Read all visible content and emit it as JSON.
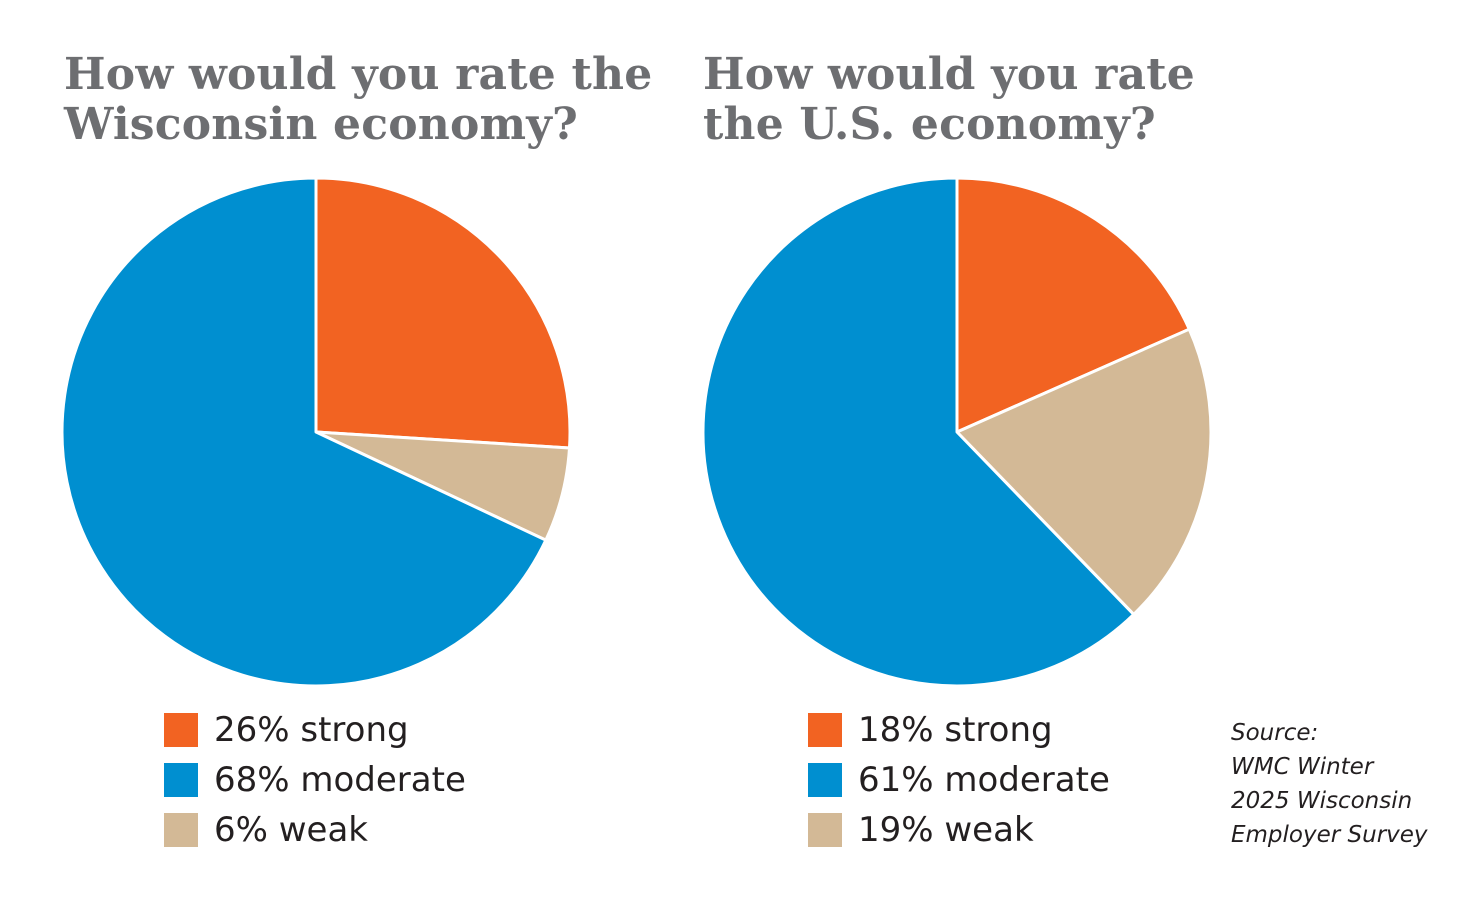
{
  "colors": {
    "strong": "#f26322",
    "moderate": "#008fd0",
    "weak": "#d3b996",
    "title": "#6d6e71",
    "text": "#231f20"
  },
  "chart_data": [
    {
      "type": "pie",
      "title_lines": [
        "How would you rate the",
        "Wisconsin economy?"
      ],
      "slices": [
        {
          "label": "26% strong",
          "category": "strong",
          "value": 26
        },
        {
          "label": "6% weak",
          "category": "weak",
          "value": 6
        },
        {
          "label": "68% moderate",
          "category": "moderate",
          "value": 68
        }
      ],
      "legend": [
        {
          "label": "26% strong",
          "category": "strong"
        },
        {
          "label": "68% moderate",
          "category": "moderate"
        },
        {
          "label": "6% weak",
          "category": "weak"
        }
      ],
      "legend_position": "bottom"
    },
    {
      "type": "pie",
      "title_lines": [
        "How would you rate",
        "the U.S. economy?"
      ],
      "slices": [
        {
          "label": "18% strong",
          "category": "strong",
          "value": 18
        },
        {
          "label": "19% weak",
          "category": "weak",
          "value": 19
        },
        {
          "label": "61% moderate",
          "category": "moderate",
          "value": 61
        }
      ],
      "legend": [
        {
          "label": "18% strong",
          "category": "strong"
        },
        {
          "label": "61% moderate",
          "category": "moderate"
        },
        {
          "label": "19% weak",
          "category": "weak"
        }
      ],
      "legend_position": "bottom"
    }
  ],
  "source": {
    "lines": [
      "Source:",
      "WMC Winter",
      "2025 Wisconsin",
      "Employer Survey"
    ]
  }
}
